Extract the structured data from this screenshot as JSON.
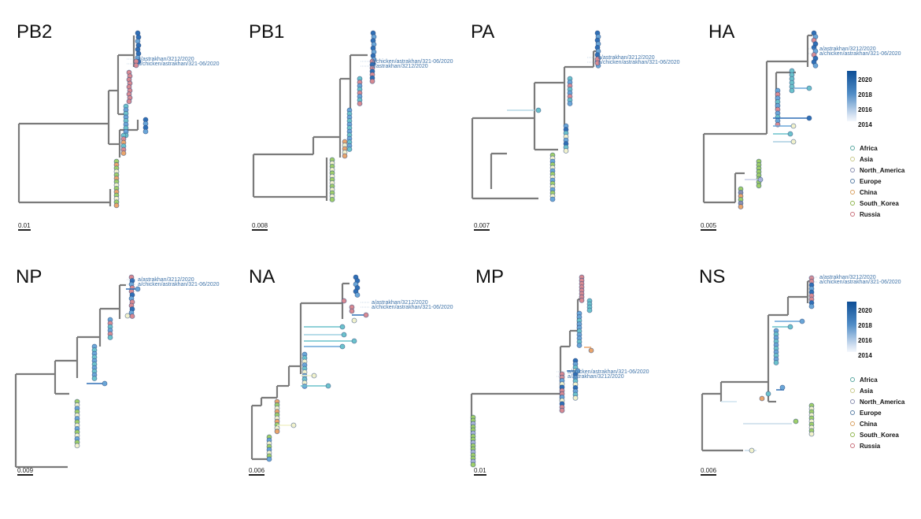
{
  "panels": [
    {
      "title": "PB2",
      "scale": "0.01",
      "labels": [
        "a/astrakhan/3212/2020",
        "a/chicken/astrakhan/321-06/2020"
      ]
    },
    {
      "title": "PB1",
      "scale": "0.008",
      "labels": [
        "a/chicken/astrakhan/321-06/2020",
        "a/astrakhan/3212/2020"
      ]
    },
    {
      "title": "PA",
      "scale": "0.007",
      "labels": [
        "a/astrakhan/3212/2020",
        "a/chicken/astrakhan/321-06/2020"
      ]
    },
    {
      "title": "HA",
      "scale": "0.005",
      "labels": [
        "a/astrakhan/3212/2020",
        "a/chicken/astrakhan/321-06/2020"
      ]
    },
    {
      "title": "NP",
      "scale": "0.009",
      "labels": [
        "a/astrakhan/3212/2020",
        "a/chicken/astrakhan/321-06/2020"
      ]
    },
    {
      "title": "NA",
      "scale": "0.006",
      "labels": [
        "a/astrakhan/3212/2020",
        "a/chicken/astrakhan/321-06/2020"
      ]
    },
    {
      "title": "MP",
      "scale": "0.01",
      "labels": [
        "a/chicken/astrakhan/321-06/2020",
        "a/astrakhan/3212/2020"
      ]
    },
    {
      "title": "NS",
      "scale": "0.006",
      "labels": [
        "a/astrakhan/3212/2020",
        "a/chicken/astrakhan/321-06/2020"
      ]
    }
  ],
  "legend": {
    "years": [
      "2020",
      "2018",
      "2016",
      "2014"
    ],
    "regions": [
      {
        "name": "Africa",
        "color": "#5aa7a0"
      },
      {
        "name": "Asia",
        "color": "#c9c98a"
      },
      {
        "name": "North_America",
        "color": "#8a8fb0"
      },
      {
        "name": "Europe",
        "color": "#5b7fa6"
      },
      {
        "name": "China",
        "color": "#d9a060"
      },
      {
        "name": "South_Korea",
        "color": "#8fb54e"
      },
      {
        "name": "Russia",
        "color": "#c9707a"
      }
    ]
  },
  "colors": {
    "branch": "#7a7a7a",
    "blue_dark": "#2f6fb6",
    "blue_mid": "#6aa6d8",
    "teal": "#6cc2cc",
    "pink": "#d98a92",
    "orange": "#eaa56c",
    "green": "#9fcf6a",
    "pale": "#f2f2cc"
  }
}
